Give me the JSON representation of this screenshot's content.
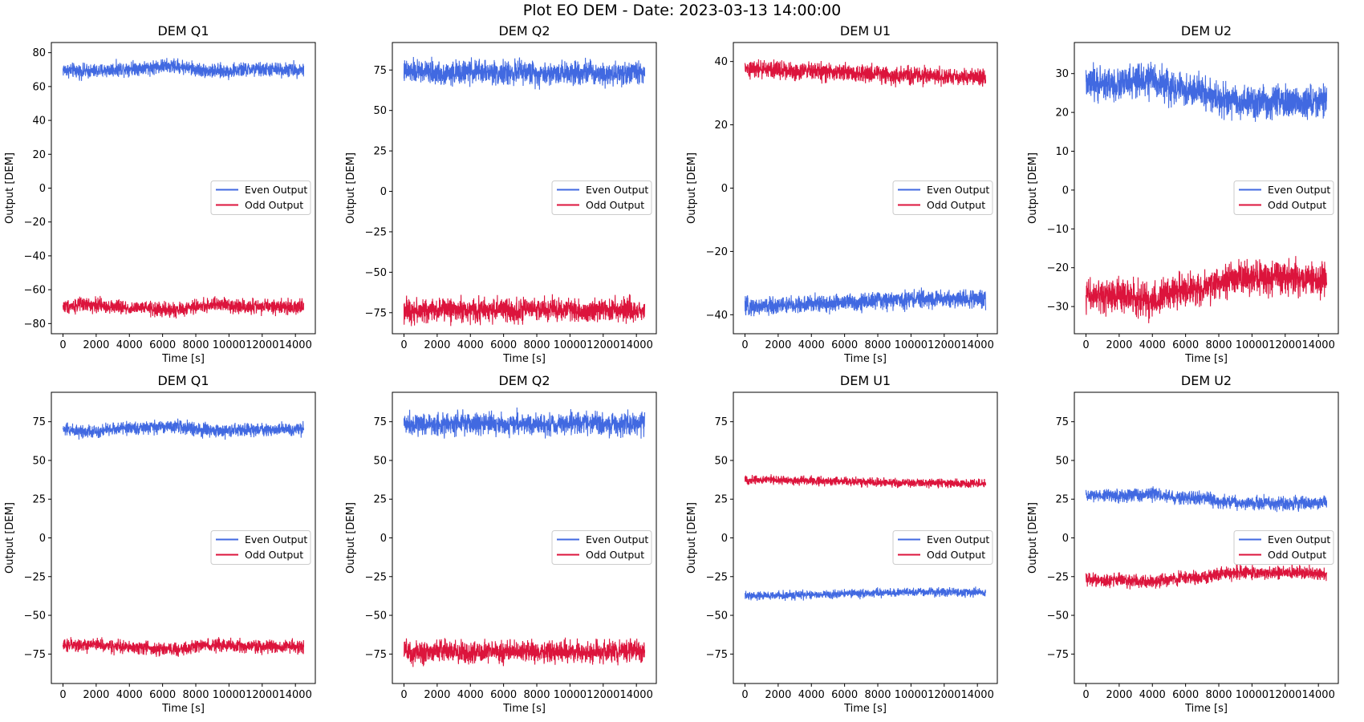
{
  "figure": {
    "title": "Plot EO DEM - Date: 2023-03-13 14:00:00"
  },
  "colors": {
    "even": "#4169e1",
    "odd": "#dc143c"
  },
  "chart_data": [
    {
      "type": "line",
      "title": "DEM Q1",
      "xlabel": "Time [s]",
      "ylabel": "Output [DEM]",
      "xlim": [
        -700,
        15200
      ],
      "ylim": [
        -86,
        86
      ],
      "xticks": [
        0,
        2000,
        4000,
        6000,
        8000,
        10000,
        12000,
        14000
      ],
      "yticks": [
        -80,
        -60,
        -40,
        -20,
        0,
        20,
        40,
        60,
        80
      ],
      "legend": "center-right",
      "grid": false,
      "x": [
        0,
        1000,
        2000,
        3000,
        4000,
        5000,
        6000,
        7000,
        8000,
        9000,
        10000,
        11000,
        12000,
        13000,
        14500
      ],
      "series": [
        {
          "name": "Even Output",
          "values": [
            70,
            69,
            69,
            70,
            71,
            71,
            72,
            72,
            70,
            69,
            69,
            70,
            70,
            70,
            70
          ],
          "spread": 3.5
        },
        {
          "name": "Odd Output",
          "values": [
            -70,
            -69,
            -69,
            -70,
            -71,
            -71,
            -72,
            -72,
            -70,
            -69,
            -69,
            -70,
            -70,
            -70,
            -70
          ],
          "spread": 3.5
        }
      ]
    },
    {
      "type": "line",
      "title": "DEM Q2",
      "xlabel": "Time [s]",
      "ylabel": "Output [DEM]",
      "xlim": [
        -700,
        15200
      ],
      "ylim": [
        -88,
        92
      ],
      "xticks": [
        0,
        2000,
        4000,
        6000,
        8000,
        10000,
        12000,
        14000
      ],
      "yticks": [
        -75,
        -50,
        -25,
        0,
        25,
        50,
        75
      ],
      "legend": "center-right",
      "grid": false,
      "x": [
        0,
        1000,
        2000,
        3000,
        4000,
        5000,
        6000,
        7000,
        8000,
        9000,
        10000,
        11000,
        12000,
        13000,
        14500
      ],
      "series": [
        {
          "name": "Even Output",
          "values": [
            74,
            74,
            73,
            73,
            74,
            74,
            73,
            74,
            73,
            73,
            74,
            74,
            73,
            73,
            74
          ],
          "spread": 6
        },
        {
          "name": "Odd Output",
          "values": [
            -73,
            -74,
            -73,
            -73,
            -74,
            -73,
            -73,
            -74,
            -73,
            -73,
            -73,
            -74,
            -73,
            -73,
            -74
          ],
          "spread": 6
        }
      ]
    },
    {
      "type": "line",
      "title": "DEM U1",
      "xlabel": "Time [s]",
      "ylabel": "Output [DEM]",
      "xlim": [
        -700,
        15200
      ],
      "ylim": [
        -46,
        46
      ],
      "xticks": [
        0,
        2000,
        4000,
        6000,
        8000,
        10000,
        12000,
        14000
      ],
      "yticks": [
        -40,
        -20,
        0,
        20,
        40
      ],
      "legend": "center-right",
      "grid": false,
      "x": [
        0,
        1000,
        2000,
        3000,
        4000,
        5000,
        6000,
        7000,
        8000,
        9000,
        10000,
        11000,
        12000,
        13000,
        14500
      ],
      "series": [
        {
          "name": "Even Output",
          "values": [
            -37.5,
            -37.5,
            -37,
            -37,
            -36.5,
            -36.5,
            -36,
            -36,
            -35.5,
            -35.5,
            -35,
            -35,
            -35,
            -35,
            -35
          ],
          "spread": 2.3
        },
        {
          "name": "Odd Output",
          "values": [
            37.5,
            37.5,
            37.5,
            37,
            37,
            36.5,
            36.5,
            36,
            36,
            35.5,
            35.5,
            35.5,
            35.5,
            35,
            35
          ],
          "spread": 2.3
        }
      ]
    },
    {
      "type": "line",
      "title": "DEM U2",
      "xlabel": "Time [s]",
      "ylabel": "Output [DEM]",
      "xlim": [
        -700,
        15200
      ],
      "ylim": [
        -37,
        38
      ],
      "xticks": [
        0,
        2000,
        4000,
        6000,
        8000,
        10000,
        12000,
        14000
      ],
      "yticks": [
        -30,
        -20,
        -10,
        0,
        10,
        20,
        30
      ],
      "legend": "center-right",
      "grid": false,
      "x": [
        0,
        1000,
        2000,
        3000,
        4000,
        5000,
        6000,
        7000,
        8000,
        9000,
        10000,
        11000,
        12000,
        13000,
        14500
      ],
      "series": [
        {
          "name": "Even Output",
          "values": [
            27,
            27.5,
            27,
            28,
            28.5,
            26.5,
            25.5,
            25.5,
            23.5,
            22.5,
            22.5,
            22.5,
            22.5,
            22.5,
            23
          ],
          "spread": 3.5
        },
        {
          "name": "Odd Output",
          "values": [
            -27,
            -27.5,
            -27,
            -28,
            -28.5,
            -26.5,
            -25.5,
            -25.5,
            -23.5,
            -22.5,
            -22.5,
            -22.5,
            -22.5,
            -22.5,
            -23
          ],
          "spread": 3.5
        }
      ]
    },
    {
      "type": "line",
      "title": "DEM Q1",
      "xlabel": "Time [s]",
      "ylabel": "Output [DEM]",
      "xlim": [
        -700,
        15200
      ],
      "ylim": [
        -94,
        94
      ],
      "xticks": [
        0,
        2000,
        4000,
        6000,
        8000,
        10000,
        12000,
        14000
      ],
      "yticks": [
        -75,
        -50,
        -25,
        0,
        25,
        50,
        75
      ],
      "legend": "center-right",
      "grid": false,
      "x": [
        0,
        1000,
        2000,
        3000,
        4000,
        5000,
        6000,
        7000,
        8000,
        9000,
        10000,
        11000,
        12000,
        13000,
        14500
      ],
      "series": [
        {
          "name": "Even Output",
          "values": [
            70,
            69,
            69,
            70,
            71,
            71,
            72,
            72,
            70,
            69,
            69,
            70,
            70,
            70,
            70
          ],
          "spread": 3.5
        },
        {
          "name": "Odd Output",
          "values": [
            -70,
            -69,
            -69,
            -70,
            -71,
            -71,
            -72,
            -72,
            -70,
            -69,
            -69,
            -70,
            -70,
            -70,
            -70
          ],
          "spread": 3.5
        }
      ]
    },
    {
      "type": "line",
      "title": "DEM Q2",
      "xlabel": "Time [s]",
      "ylabel": "Output [DEM]",
      "xlim": [
        -700,
        15200
      ],
      "ylim": [
        -94,
        94
      ],
      "xticks": [
        0,
        2000,
        4000,
        6000,
        8000,
        10000,
        12000,
        14000
      ],
      "yticks": [
        -75,
        -50,
        -25,
        0,
        25,
        50,
        75
      ],
      "legend": "center-right",
      "grid": false,
      "x": [
        0,
        1000,
        2000,
        3000,
        4000,
        5000,
        6000,
        7000,
        8000,
        9000,
        10000,
        11000,
        12000,
        13000,
        14500
      ],
      "series": [
        {
          "name": "Even Output",
          "values": [
            74,
            74,
            73,
            73,
            74,
            74,
            73,
            74,
            73,
            73,
            74,
            74,
            73,
            73,
            74
          ],
          "spread": 6
        },
        {
          "name": "Odd Output",
          "values": [
            -73,
            -74,
            -73,
            -73,
            -74,
            -73,
            -73,
            -74,
            -73,
            -73,
            -73,
            -74,
            -73,
            -73,
            -74
          ],
          "spread": 6
        }
      ]
    },
    {
      "type": "line",
      "title": "DEM U1",
      "xlabel": "Time [s]",
      "ylabel": "Output [DEM]",
      "xlim": [
        -700,
        15200
      ],
      "ylim": [
        -94,
        94
      ],
      "xticks": [
        0,
        2000,
        4000,
        6000,
        8000,
        10000,
        12000,
        14000
      ],
      "yticks": [
        -75,
        -50,
        -25,
        0,
        25,
        50,
        75
      ],
      "legend": "center-right",
      "grid": false,
      "x": [
        0,
        1000,
        2000,
        3000,
        4000,
        5000,
        6000,
        7000,
        8000,
        9000,
        10000,
        11000,
        12000,
        13000,
        14500
      ],
      "series": [
        {
          "name": "Even Output",
          "values": [
            -37.5,
            -37.5,
            -37,
            -37,
            -36.5,
            -36.5,
            -36,
            -36,
            -35.5,
            -35.5,
            -35,
            -35,
            -35,
            -35,
            -35
          ],
          "spread": 2.3
        },
        {
          "name": "Odd Output",
          "values": [
            37.5,
            37.5,
            37.5,
            37,
            37,
            36.5,
            36.5,
            36,
            36,
            35.5,
            35.5,
            35.5,
            35.5,
            35,
            35
          ],
          "spread": 2.3
        }
      ]
    },
    {
      "type": "line",
      "title": "DEM U2",
      "xlabel": "Time [s]",
      "ylabel": "Output [DEM]",
      "xlim": [
        -700,
        15200
      ],
      "ylim": [
        -94,
        94
      ],
      "xticks": [
        0,
        2000,
        4000,
        6000,
        8000,
        10000,
        12000,
        14000
      ],
      "yticks": [
        -75,
        -50,
        -25,
        0,
        25,
        50,
        75
      ],
      "legend": "center-right",
      "grid": false,
      "x": [
        0,
        1000,
        2000,
        3000,
        4000,
        5000,
        6000,
        7000,
        8000,
        9000,
        10000,
        11000,
        12000,
        13000,
        14500
      ],
      "series": [
        {
          "name": "Even Output",
          "values": [
            27,
            27.5,
            27,
            28,
            28.5,
            26.5,
            25.5,
            25.5,
            23.5,
            22.5,
            22.5,
            22.5,
            22.5,
            22.5,
            23
          ],
          "spread": 3.5
        },
        {
          "name": "Odd Output",
          "values": [
            -27,
            -27.5,
            -27,
            -28,
            -28.5,
            -26.5,
            -25.5,
            -25.5,
            -23.5,
            -22.5,
            -22.5,
            -22.5,
            -22.5,
            -22.5,
            -23
          ],
          "spread": 3.5
        }
      ]
    }
  ]
}
